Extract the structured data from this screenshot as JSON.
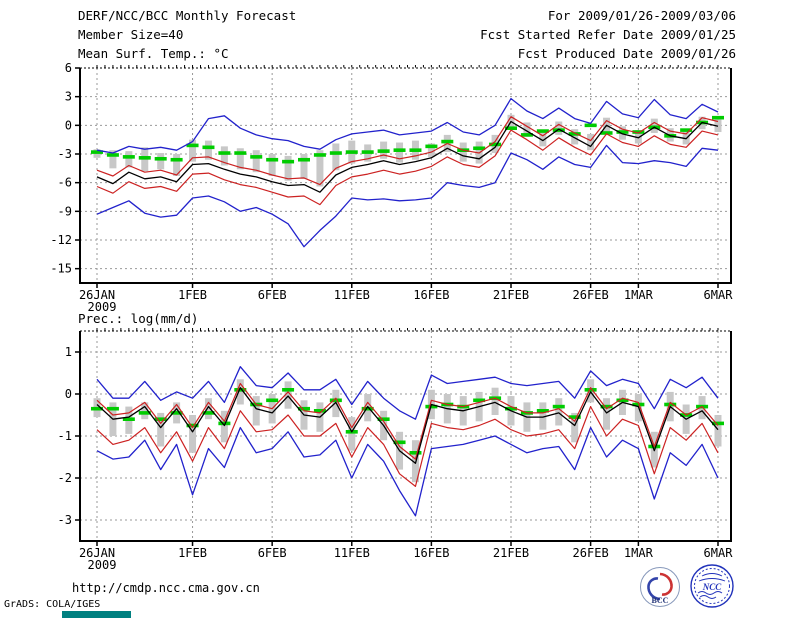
{
  "header": {
    "left": [
      "DERF/NCC/BCC Monthly Forecast",
      "Member Size=40"
    ],
    "right": [
      "For 2009/01/26-2009/03/06",
      "Fcst Started Refer Date 2009/01/25",
      "Fcst Produced Date 2009/01/26"
    ]
  },
  "footer": {
    "url": "http://cmdp.ncc.cma.gov.cn",
    "credit": "GrADS: COLA/IGES"
  },
  "logos": {
    "bcc": "BCC",
    "ncc": "NCC"
  },
  "colors": {
    "line_blue": "#2222cc",
    "line_red": "#cc2222",
    "line_black": "#000000",
    "obs_green": "#00cc00",
    "bar_gray": "#c8c8c8",
    "grid_gray": "#999999",
    "logo_blue": "#2233bb",
    "logo_red": "#cc3333",
    "logo_navy": "#223377",
    "teal_mark": "#008080"
  },
  "x_axis": {
    "n_days": 40,
    "ticks": [
      {
        "day": 0,
        "label": "26JAN",
        "year": "2009"
      },
      {
        "day": 6,
        "label": "1FEB"
      },
      {
        "day": 11,
        "label": "6FEB"
      },
      {
        "day": 16,
        "label": "11FEB"
      },
      {
        "day": 21,
        "label": "16FEB"
      },
      {
        "day": 26,
        "label": "21FEB"
      },
      {
        "day": 31,
        "label": "26FEB"
      },
      {
        "day": 34,
        "label": "1MAR"
      },
      {
        "day": 39,
        "label": "6MAR"
      }
    ]
  },
  "chart_data": [
    {
      "type": "line",
      "name": "temperature",
      "title": "Mean Surf. Temp.: °C",
      "ylim": [
        -16.5,
        6
      ],
      "yticks": [
        6,
        3,
        0,
        -3,
        -6,
        -9,
        -12,
        -15
      ],
      "grid": true,
      "legend": "none",
      "series_meaning": {
        "upper_blue": "ensemble max",
        "lower_blue": "ensemble min",
        "upper_red": "spread upper",
        "lower_red": "spread lower",
        "mean": "ensemble mean",
        "obs": "observation dashes",
        "bar_top/bar_bottom": "member spread bars"
      },
      "series": {
        "mean": [
          -5.4,
          -6.1,
          -4.9,
          -5.6,
          -5.4,
          -5.9,
          -4.1,
          -4.0,
          -4.6,
          -5.1,
          -5.4,
          -5.9,
          -6.3,
          -6.2,
          -7.0,
          -5.2,
          -4.4,
          -4.1,
          -3.7,
          -4.1,
          -3.8,
          -3.4,
          -2.4,
          -3.2,
          -3.5,
          -2.3,
          0.4,
          -0.6,
          -1.6,
          -0.4,
          -1.3,
          -2.2,
          0.0,
          -0.9,
          -1.3,
          -0.2,
          -1.1,
          -1.4,
          0.3,
          -0.1
        ],
        "upper_red": [
          -4.7,
          -5.3,
          -4.2,
          -4.9,
          -4.7,
          -5.2,
          -3.4,
          -3.3,
          -3.9,
          -4.4,
          -4.7,
          -5.2,
          -5.6,
          -5.5,
          -6.2,
          -4.5,
          -3.8,
          -3.5,
          -3.1,
          -3.5,
          -3.2,
          -2.8,
          -1.9,
          -2.6,
          -2.9,
          -1.7,
          0.9,
          -0.1,
          -1.1,
          0.1,
          -0.8,
          -1.6,
          0.5,
          -0.4,
          -0.8,
          0.3,
          -0.6,
          -0.9,
          0.8,
          0.4
        ],
        "lower_red": [
          -6.4,
          -7.1,
          -5.9,
          -6.6,
          -6.4,
          -6.9,
          -5.1,
          -5.0,
          -5.7,
          -6.2,
          -6.5,
          -7.0,
          -7.5,
          -7.4,
          -8.3,
          -6.3,
          -5.4,
          -5.1,
          -4.7,
          -5.1,
          -4.8,
          -4.3,
          -3.3,
          -4.1,
          -4.4,
          -3.2,
          -0.5,
          -1.5,
          -2.6,
          -1.3,
          -2.3,
          -3.1,
          -0.9,
          -1.8,
          -2.2,
          -1.1,
          -2.0,
          -2.3,
          -0.6,
          -1.0
        ],
        "upper_blue": [
          -2.6,
          -2.9,
          -2.2,
          -2.5,
          -2.3,
          -2.6,
          -1.7,
          0.7,
          1.0,
          -0.3,
          -1.0,
          -1.4,
          -1.6,
          -2.2,
          -2.5,
          -1.5,
          -0.9,
          -0.7,
          -0.5,
          -1.0,
          -0.8,
          -0.6,
          0.3,
          -0.7,
          -1.0,
          0.0,
          2.8,
          1.5,
          0.7,
          1.8,
          0.7,
          0.2,
          2.5,
          1.2,
          0.8,
          2.7,
          1.1,
          0.7,
          2.2,
          1.4
        ],
        "lower_blue": [
          -9.3,
          -8.6,
          -7.9,
          -9.2,
          -9.6,
          -9.4,
          -7.6,
          -7.4,
          -8.0,
          -9.0,
          -8.6,
          -9.3,
          -10.3,
          -12.7,
          -11.0,
          -9.5,
          -7.6,
          -7.8,
          -7.7,
          -7.9,
          -7.8,
          -7.6,
          -6.0,
          -6.3,
          -6.5,
          -6.0,
          -2.9,
          -3.6,
          -4.6,
          -3.3,
          -4.1,
          -4.4,
          -2.1,
          -3.9,
          -4.0,
          -3.7,
          -3.9,
          -4.3,
          -2.4,
          -2.6
        ],
        "obs": [
          -2.8,
          -3.1,
          -3.3,
          -3.4,
          -3.5,
          -3.6,
          -2.1,
          -2.3,
          -2.9,
          -2.9,
          -3.3,
          -3.6,
          -3.8,
          -3.6,
          -3.1,
          -2.9,
          -2.8,
          -2.8,
          -2.7,
          -2.6,
          -2.6,
          -2.2,
          -1.7,
          -2.6,
          -2.4,
          -2.0,
          -0.3,
          -1.0,
          -0.6,
          -0.5,
          -0.9,
          0.0,
          -0.8,
          -0.7,
          -0.7,
          -0.2,
          -1.1,
          -0.5,
          0.3,
          0.8
        ],
        "bar_top": [
          -2.5,
          -2.6,
          -2.7,
          -2.3,
          -2.9,
          -3.0,
          -1.5,
          -1.6,
          -2.2,
          -2.4,
          -2.6,
          -3.0,
          -3.2,
          -3.0,
          -2.6,
          -1.9,
          -1.6,
          -2.0,
          -1.7,
          -1.8,
          -1.6,
          -1.9,
          -1.0,
          -1.8,
          -1.7,
          -1.0,
          1.1,
          0.3,
          -0.5,
          0.4,
          -0.4,
          -0.9,
          0.8,
          -0.1,
          -0.5,
          0.7,
          -0.3,
          -0.6,
          0.9,
          0.6
        ],
        "bar_bottom": [
          -3.4,
          -4.5,
          -4.4,
          -4.8,
          -4.6,
          -5.3,
          -3.8,
          -3.6,
          -4.2,
          -4.6,
          -4.9,
          -5.3,
          -5.8,
          -5.6,
          -6.4,
          -4.7,
          -4.0,
          -3.8,
          -3.5,
          -3.9,
          -3.6,
          -3.3,
          -2.8,
          -3.8,
          -4.0,
          -2.9,
          -0.2,
          -1.2,
          -2.2,
          -1.0,
          -2.0,
          -2.6,
          -0.7,
          -1.5,
          -1.9,
          -0.8,
          -1.7,
          -2.0,
          -0.4,
          -0.7
        ]
      }
    },
    {
      "type": "line",
      "name": "precipitation",
      "title": "Prec.: log(mm/d)",
      "ylim": [
        -3.5,
        1.5
      ],
      "yticks": [
        1,
        0,
        -1,
        -2,
        -3
      ],
      "grid": true,
      "legend": "none",
      "series": {
        "mean": [
          -0.25,
          -0.6,
          -0.55,
          -0.3,
          -0.8,
          -0.35,
          -0.9,
          -0.3,
          -0.75,
          0.15,
          -0.35,
          -0.45,
          -0.05,
          -0.5,
          -0.55,
          -0.2,
          -0.9,
          -0.3,
          -0.75,
          -1.35,
          -1.65,
          -0.25,
          -0.35,
          -0.4,
          -0.3,
          -0.2,
          -0.4,
          -0.55,
          -0.55,
          -0.45,
          -0.75,
          0.05,
          -0.45,
          -0.2,
          -0.3,
          -1.35,
          -0.3,
          -0.6,
          -0.4,
          -0.85
        ],
        "upper_red": [
          -0.15,
          -0.5,
          -0.45,
          -0.2,
          -0.7,
          -0.25,
          -0.8,
          -0.2,
          -0.65,
          0.25,
          -0.25,
          -0.35,
          0.05,
          -0.4,
          -0.45,
          -0.1,
          -0.8,
          -0.2,
          -0.65,
          -1.25,
          -1.55,
          -0.15,
          -0.25,
          -0.3,
          -0.2,
          -0.1,
          -0.3,
          -0.45,
          -0.45,
          -0.35,
          -0.65,
          0.15,
          -0.35,
          -0.1,
          -0.2,
          -1.25,
          -0.2,
          -0.5,
          -0.3,
          -0.75
        ],
        "lower_red": [
          -0.85,
          -1.2,
          -1.1,
          -0.8,
          -1.4,
          -0.9,
          -1.6,
          -0.8,
          -1.3,
          -0.4,
          -0.9,
          -0.85,
          -0.5,
          -1.0,
          -1.0,
          -0.7,
          -1.5,
          -0.8,
          -1.2,
          -1.9,
          -2.2,
          -0.7,
          -0.8,
          -0.85,
          -0.75,
          -0.6,
          -0.85,
          -1.0,
          -0.95,
          -0.85,
          -1.3,
          -0.3,
          -1.0,
          -0.6,
          -0.75,
          -1.9,
          -0.8,
          -1.1,
          -0.7,
          -1.4
        ],
        "upper_blue": [
          0.35,
          -0.1,
          -0.1,
          0.3,
          -0.15,
          0.05,
          -0.1,
          0.3,
          -0.2,
          0.65,
          0.2,
          0.15,
          0.5,
          0.1,
          0.1,
          0.35,
          -0.25,
          0.3,
          -0.1,
          -0.4,
          -0.6,
          0.45,
          0.25,
          0.3,
          0.35,
          0.4,
          0.25,
          0.2,
          0.25,
          0.3,
          -0.1,
          0.55,
          0.2,
          0.35,
          0.25,
          -0.35,
          0.35,
          0.15,
          0.4,
          -0.1
        ],
        "lower_blue": [
          -1.35,
          -1.55,
          -1.5,
          -1.1,
          -1.8,
          -1.2,
          -2.4,
          -1.3,
          -1.75,
          -0.8,
          -1.4,
          -1.3,
          -0.9,
          -1.5,
          -1.45,
          -1.1,
          -2.0,
          -1.2,
          -1.6,
          -2.3,
          -2.9,
          -1.3,
          -1.25,
          -1.2,
          -1.1,
          -1.0,
          -1.2,
          -1.4,
          -1.3,
          -1.25,
          -1.8,
          -0.8,
          -1.5,
          -1.1,
          -1.3,
          -2.5,
          -1.4,
          -1.7,
          -1.2,
          -2.0
        ],
        "obs": [
          -0.35,
          -0.35,
          -0.6,
          -0.45,
          -0.6,
          -0.45,
          -0.75,
          -0.45,
          -0.7,
          0.1,
          -0.25,
          -0.15,
          0.1,
          -0.35,
          -0.4,
          -0.15,
          -0.9,
          -0.35,
          -0.6,
          -1.15,
          -1.4,
          -0.3,
          -0.25,
          -0.3,
          -0.15,
          -0.1,
          -0.35,
          -0.45,
          -0.4,
          -0.3,
          -0.55,
          0.1,
          -0.3,
          -0.15,
          -0.25,
          -1.25,
          -0.25,
          -0.5,
          -0.3,
          -0.7
        ],
        "bar_top": [
          -0.1,
          -0.2,
          -0.3,
          -0.2,
          -0.45,
          -0.2,
          -0.5,
          -0.1,
          -0.4,
          0.35,
          -0.05,
          0.0,
          0.3,
          -0.15,
          -0.2,
          0.1,
          -0.55,
          0.0,
          -0.4,
          -0.9,
          -1.1,
          0.1,
          0.0,
          -0.05,
          0.05,
          0.15,
          -0.05,
          -0.2,
          -0.2,
          -0.1,
          -0.45,
          0.35,
          -0.1,
          0.1,
          0.0,
          -0.9,
          0.05,
          -0.25,
          -0.05,
          -0.5
        ],
        "bar_bottom": [
          -0.55,
          -1.0,
          -0.95,
          -0.6,
          -1.25,
          -0.7,
          -1.4,
          -0.6,
          -1.15,
          -0.25,
          -0.75,
          -0.7,
          -0.35,
          -0.85,
          -0.9,
          -0.55,
          -1.35,
          -0.65,
          -1.1,
          -1.8,
          -2.1,
          -0.6,
          -0.7,
          -0.75,
          -0.65,
          -0.5,
          -0.75,
          -0.9,
          -0.85,
          -0.75,
          -1.15,
          -0.2,
          -0.85,
          -0.5,
          -0.65,
          -1.75,
          -0.65,
          -0.95,
          -0.6,
          -1.25
        ]
      }
    }
  ]
}
